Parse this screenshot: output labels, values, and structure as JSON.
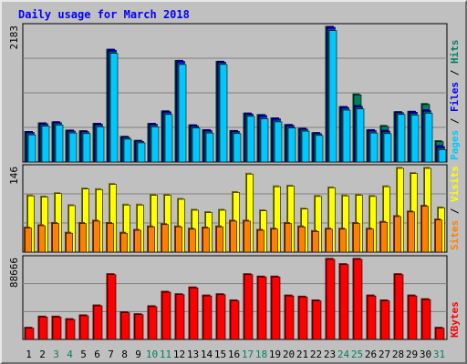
{
  "chart_data": {
    "type": "bar",
    "title": "Daily usage for March 2018",
    "days": [
      "1",
      "2",
      "3",
      "4",
      "5",
      "6",
      "7",
      "8",
      "9",
      "10",
      "11",
      "12",
      "13",
      "14",
      "15",
      "16",
      "17",
      "18",
      "19",
      "20",
      "21",
      "22",
      "23",
      "24",
      "25",
      "26",
      "27",
      "28",
      "29",
      "30",
      "31"
    ],
    "weekend_days": [
      "3",
      "4",
      "10",
      "11",
      "17",
      "18",
      "24",
      "25",
      "31"
    ],
    "panels": [
      {
        "id": "hits-files-pages",
        "axis_max_label": "2183",
        "ymax": 2183,
        "axis_labels": [
          {
            "text": "Pages",
            "color": "#00c8ff"
          },
          {
            "text": " / ",
            "color": "#000000"
          },
          {
            "text": "Files",
            "color": "#0000ff"
          },
          {
            "text": " / ",
            "color": "#000000"
          },
          {
            "text": "Hits",
            "color": "#008060"
          }
        ],
        "series": [
          {
            "name": "Hits",
            "color": "#008060",
            "values": [
              479,
              619,
              637,
              502,
              491,
              612,
              1812,
              400,
              335,
              611,
              813,
              1631,
              587,
              508,
              1617,
              495,
              778,
              753,
              700,
              592,
              532,
              461,
              2183,
              884,
              1088,
              508,
              577,
              800,
              806,
              932,
              330
            ]
          },
          {
            "name": "Files",
            "color": "#0000ff",
            "values": [
              479,
              619,
              637,
              502,
              491,
              612,
              1812,
              400,
              335,
              611,
              813,
              1631,
              587,
              508,
              1617,
              495,
              778,
              753,
              700,
              592,
              532,
              461,
              2183,
              884,
              900,
              508,
              500,
              800,
              806,
              830,
              250
            ]
          },
          {
            "name": "Pages",
            "color": "#00c8ff",
            "values": [
              440,
              580,
              600,
              470,
              460,
              570,
              1760,
              370,
              310,
              570,
              770,
              1580,
              550,
              470,
              1580,
              460,
              740,
              700,
              650,
              550,
              500,
              430,
              2130,
              840,
              860,
              470,
              460,
              770,
              760,
              790,
              200
            ]
          }
        ]
      },
      {
        "id": "visits-sites",
        "axis_max_label": "146",
        "ymax": 146,
        "axis_labels": [
          {
            "text": "Sites",
            "color": "#ff8000"
          },
          {
            "text": " / ",
            "color": "#000000"
          },
          {
            "text": "Visits",
            "color": "#ffff00"
          }
        ],
        "series": [
          {
            "name": "Visits",
            "color": "#ffff00",
            "values": [
              98,
              96,
              102,
              81,
              110,
              109,
              118,
              82,
              82,
              99,
              99,
              92,
              73,
              69,
              73,
              104,
              136,
              72,
              114,
              115,
              75,
              97,
              112,
              98,
              99,
              97,
              114,
              146,
              137,
              146,
              77
            ]
          },
          {
            "name": "Sites",
            "color": "#ff8000",
            "values": [
              42,
              46,
              50,
              33,
              50,
              54,
              50,
              33,
              38,
              44,
              48,
              44,
              40,
              42,
              44,
              54,
              54,
              38,
              40,
              50,
              44,
              36,
              40,
              40,
              50,
              40,
              52,
              62,
              70,
              80,
              56
            ]
          }
        ]
      },
      {
        "id": "kbytes",
        "axis_max_label": "88666",
        "ymax": 88666,
        "axis_labels": [
          {
            "text": "KBytes",
            "color": "#ff0000"
          }
        ],
        "series": [
          {
            "name": "KBytes",
            "color": "#ff0000",
            "values": [
              12400,
              24800,
              24800,
              22000,
              26200,
              37200,
              71800,
              29600,
              27500,
              36300,
              52300,
              49600,
              57100,
              48200,
              49600,
              42700,
              71800,
              69100,
              69100,
              48200,
              46900,
              42700,
              88666,
              82900,
              88666,
              48200,
              42700,
              71800,
              48200,
              44100,
              12400
            ]
          }
        ]
      }
    ]
  }
}
